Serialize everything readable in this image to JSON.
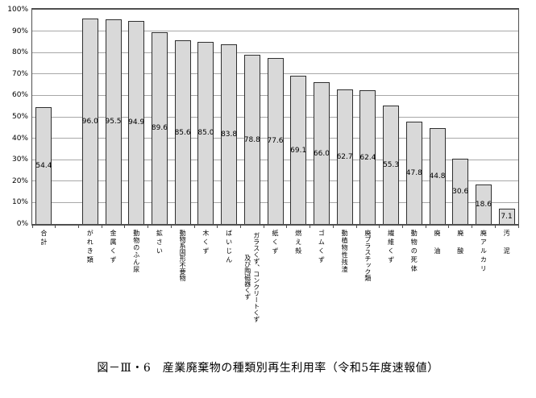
{
  "chart_data": {
    "type": "bar",
    "title": "図－Ⅲ・6　産業廃棄物の種類別再生利用率（令和5年度速報値）",
    "categories": [
      "合計",
      "がれき類",
      "金属くず",
      "動物のふん尿",
      "鉱さい",
      "動物系固形不要物",
      "木くず",
      "ばいじん",
      "ガラスくず、コンクリートくず及び陶磁器くず",
      "紙くず",
      "燃え殻",
      "ゴムくず",
      "動植物性残渣",
      "廃プラスチック類",
      "繊維くず",
      "動物の死体",
      "廃　油",
      "廃　酸",
      "廃アルカリ",
      "汚　泥"
    ],
    "values": [
      54.4,
      96.0,
      95.5,
      94.9,
      89.6,
      85.6,
      85.0,
      83.8,
      78.8,
      77.6,
      69.1,
      66.0,
      62.7,
      62.4,
      55.3,
      47.8,
      44.8,
      30.6,
      18.6,
      7.1
    ],
    "value_labels": [
      "54.4",
      "96.0",
      "95.5",
      "94.9",
      "89.6",
      "85.6",
      "85.0",
      "83.8",
      "78.8",
      "77.6",
      "69.1",
      "66.0",
      "62.7",
      "62.4",
      "55.3",
      "47.8",
      "44.8",
      "30.6",
      "18.6",
      "7.1"
    ],
    "y_tick_labels": [
      "0%",
      "10%",
      "20%",
      "30%",
      "40%",
      "50%",
      "60%",
      "70%",
      "80%",
      "90%",
      "100%"
    ],
    "ylim": [
      0,
      100
    ],
    "grid_step_pct": 10,
    "gap_slot_after_first": true,
    "legend": "none",
    "colors": {
      "bar_fill": "#d9d9d9",
      "bar_border": "#2f2f2f",
      "gridline": "#a8a8a8",
      "axis": "#4f4f4f",
      "text": "#000000"
    }
  }
}
